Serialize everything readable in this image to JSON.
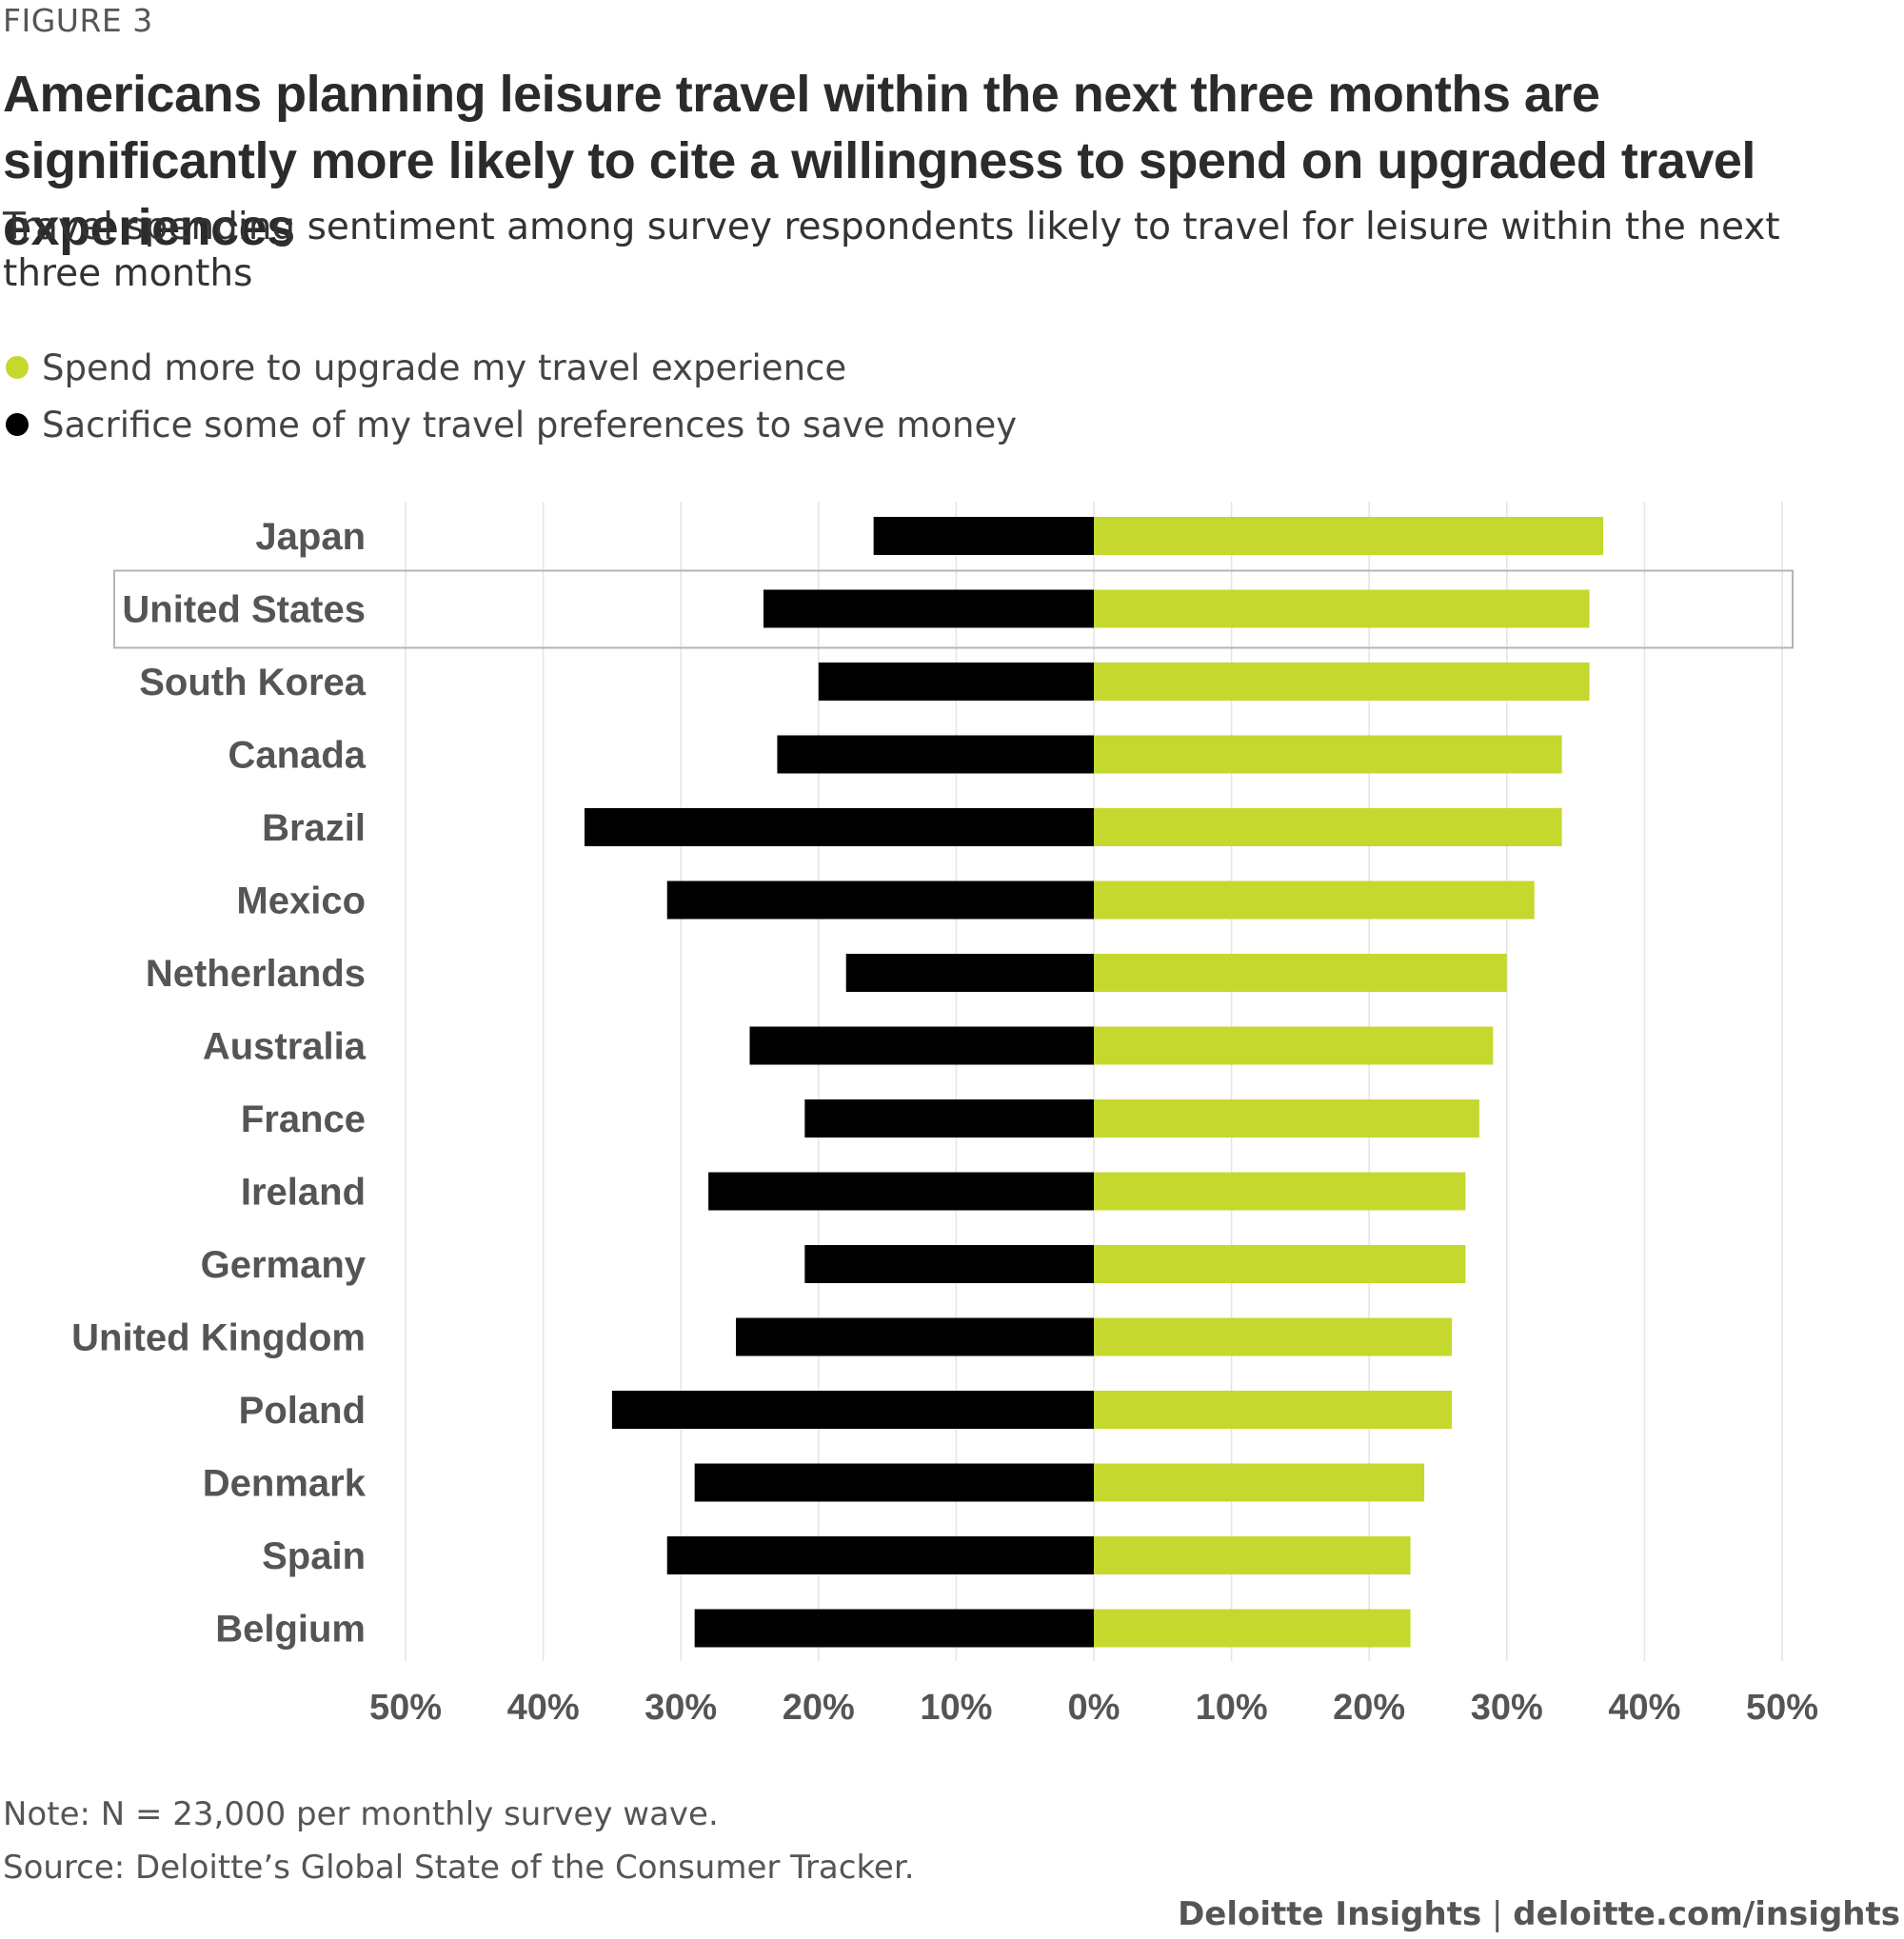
{
  "figure_label": "FIGURE 3",
  "title": "Americans planning leisure travel within the next three months are significantly more likely to cite a willingness to spend on upgraded travel experiences",
  "subtitle": "Travel spending sentiment among survey respondents likely to travel for leisure within the next three months",
  "legend": [
    {
      "label": "Spend more to upgrade my travel experience",
      "color": "#c4d82e"
    },
    {
      "label": "Sacrifice some of my travel preferences to save money",
      "color": "#000000"
    }
  ],
  "note": "Note: N = 23,000 per monthly survey wave.",
  "source": "Source: Deloitte’s Global State of the Consumer Tracker.",
  "credit_brand": "Deloitte Insights",
  "credit_sep": " | ",
  "credit_url": "deloitte.com/insights",
  "chart_data": {
    "type": "bar",
    "orientation": "horizontal-diverging",
    "categories": [
      "Japan",
      "United States",
      "South Korea",
      "Canada",
      "Brazil",
      "Mexico",
      "Netherlands",
      "Australia",
      "France",
      "Ireland",
      "Germany",
      "United Kingdom",
      "Poland",
      "Denmark",
      "Spain",
      "Belgium"
    ],
    "series": [
      {
        "name": "Spend more to upgrade my travel experience",
        "direction": "right",
        "color": "#c4d82e",
        "values": [
          37,
          36,
          36,
          34,
          34,
          32,
          30,
          29,
          28,
          27,
          27,
          26,
          26,
          24,
          23,
          23
        ]
      },
      {
        "name": "Sacrifice some of my travel preferences to save money",
        "direction": "left",
        "color": "#000000",
        "values": [
          16,
          24,
          20,
          23,
          37,
          31,
          18,
          25,
          21,
          28,
          21,
          26,
          35,
          29,
          31,
          29
        ]
      }
    ],
    "highlight": "United States",
    "xlim": [
      -50,
      50
    ],
    "xticks": [
      -50,
      -40,
      -30,
      -20,
      -10,
      0,
      10,
      20,
      30,
      40,
      50
    ],
    "xtick_labels": [
      "50%",
      "40%",
      "30%",
      "20%",
      "10%",
      "0%",
      "10%",
      "20%",
      "30%",
      "40%",
      "50%"
    ],
    "grid": true
  }
}
